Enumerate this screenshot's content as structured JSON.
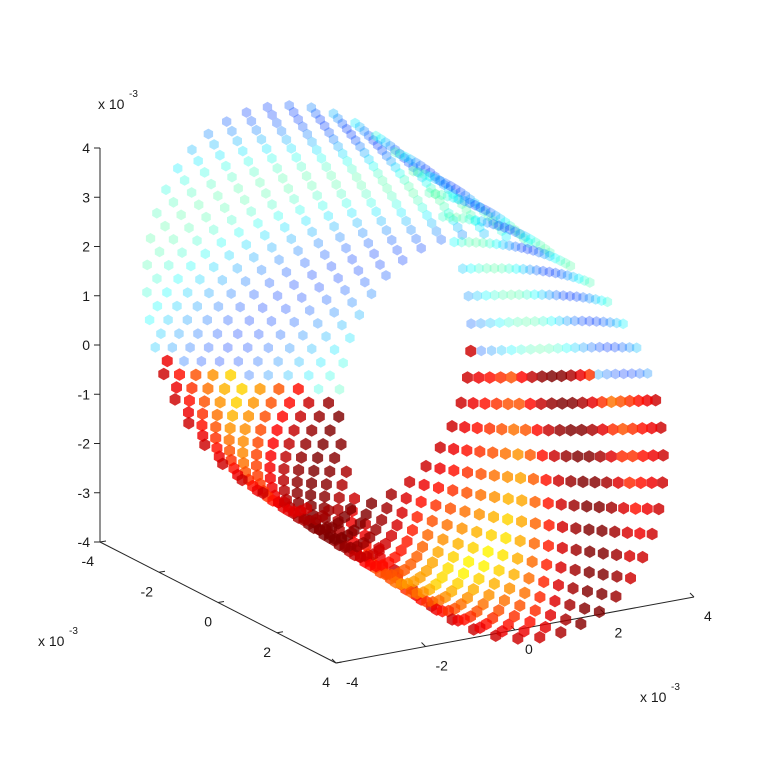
{
  "chart_data": {
    "type": "scatter",
    "title": "",
    "xlabel": "",
    "ylabel": "",
    "zlabel": "",
    "x_multiplier": {
      "base": "x 10",
      "exponent": "-3"
    },
    "y_multiplier": {
      "base": "x 10",
      "exponent": "-3"
    },
    "z_multiplier": {
      "base": "x 10",
      "exponent": "-3"
    },
    "x_ticks": [
      "-4",
      "-2",
      "0",
      "2",
      "4"
    ],
    "y_ticks": [
      "-4",
      "-2",
      "0",
      "2",
      "4"
    ],
    "z_ticks": [
      "4",
      "3",
      "2",
      "1",
      "0",
      "-1",
      "-2",
      "-3",
      "-4"
    ],
    "xlim": [
      -4,
      4
    ],
    "ylim": [
      -4,
      4
    ],
    "zlim": [
      -4,
      4
    ],
    "grid": false,
    "marker": "filled hexagon",
    "colormap": "jet",
    "shape": "ring (short cylindrical band) of points",
    "ring": {
      "radius": 3.3,
      "half_width": 1.6,
      "rings": 20,
      "points_per_ring": 46
    }
  }
}
